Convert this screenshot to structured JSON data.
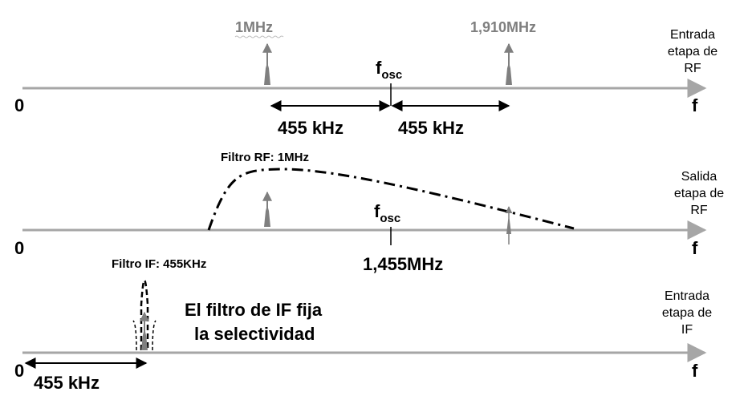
{
  "colors": {
    "axis": "#a6a6a6",
    "carrier": "#7f7f7f",
    "arrow": "#000000"
  },
  "panel1": {
    "carrier1_label": "1MHz",
    "carrier2_label": "1,910MHz",
    "fosc_main": "f",
    "fosc_sub": "osc",
    "zero": "0",
    "f_label": "f",
    "span_left": "455 kHz",
    "span_right": "455 kHz",
    "side": [
      "Entrada",
      "etapa de",
      "RF"
    ]
  },
  "panel2": {
    "filter_label": "Filtro RF: 1MHz",
    "fosc_main": "f",
    "fosc_sub": "osc",
    "center_label": "1,455MHz",
    "zero": "0",
    "f_label": "f",
    "side": [
      "Salida",
      "etapa de",
      "RF"
    ]
  },
  "panel3": {
    "filter_label": "Filtro IF: 455KHz",
    "note": [
      "El filtro de IF fija",
      "la selectividad"
    ],
    "zero": "0",
    "f_label": "f",
    "span": "455 kHz",
    "side": [
      "Entrada",
      "etapa de",
      "IF"
    ]
  }
}
